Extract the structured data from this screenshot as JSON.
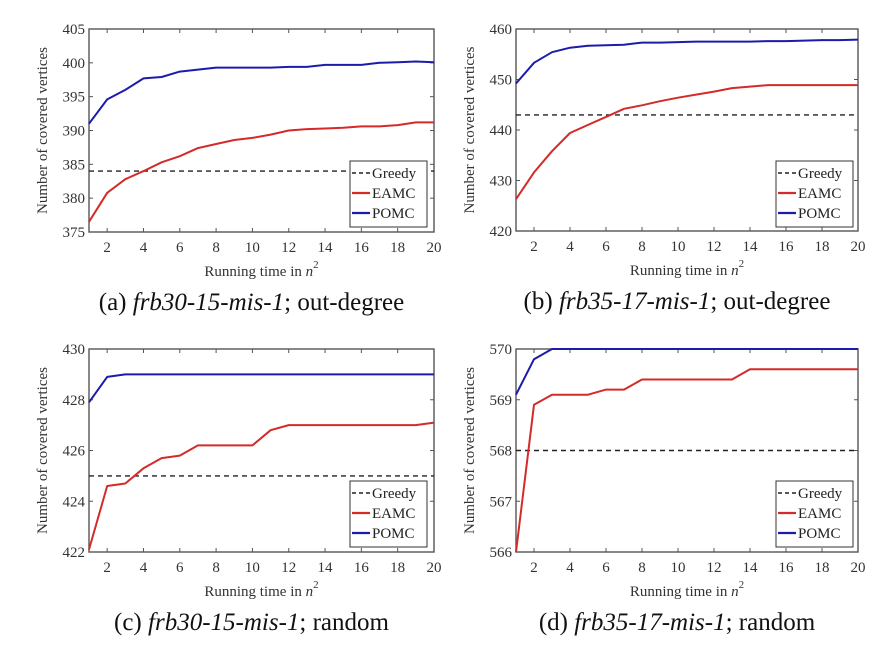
{
  "chart_data": [
    {
      "type": "line",
      "id": "a",
      "caption": {
        "prefix": "(a) ",
        "dataset": "frb30-15-mis-1",
        "suffix": "; out-degree"
      },
      "xlabel": "Running time in n^2",
      "xlabel_main": "Running time in ",
      "xlabel_var": "n",
      "xlabel_exp": "2",
      "ylabel": "Number of covered vertices",
      "xlim": [
        1,
        20
      ],
      "ylim": [
        375,
        405
      ],
      "xticks": [
        2,
        4,
        6,
        8,
        10,
        12,
        14,
        16,
        18,
        20
      ],
      "yticks": [
        375,
        380,
        385,
        390,
        395,
        400,
        405
      ],
      "legend_position": "bottom-right",
      "x": [
        1,
        2,
        3,
        4,
        5,
        6,
        7,
        8,
        9,
        10,
        11,
        12,
        13,
        14,
        15,
        16,
        17,
        18,
        19,
        20
      ],
      "series": [
        {
          "name": "Greedy",
          "style": "dashed",
          "color": "#222222",
          "values": [
            384,
            384,
            384,
            384,
            384,
            384,
            384,
            384,
            384,
            384,
            384,
            384,
            384,
            384,
            384,
            384,
            384,
            384,
            384,
            384
          ]
        },
        {
          "name": "EAMC",
          "style": "solid",
          "color": "#d42a2a",
          "values": [
            376.5,
            380.8,
            382.8,
            384.0,
            385.3,
            386.2,
            387.4,
            388.0,
            388.6,
            388.9,
            389.4,
            390.0,
            390.2,
            390.3,
            390.4,
            390.6,
            390.6,
            390.8,
            391.2,
            391.2
          ]
        },
        {
          "name": "POMC",
          "style": "solid",
          "color": "#1c1cab",
          "values": [
            391.0,
            394.6,
            396.0,
            397.7,
            397.9,
            398.7,
            399.0,
            399.3,
            399.3,
            399.3,
            399.3,
            399.4,
            399.4,
            399.7,
            399.7,
            399.7,
            400.0,
            400.1,
            400.2,
            400.1
          ]
        }
      ]
    },
    {
      "type": "line",
      "id": "b",
      "caption": {
        "prefix": "(b) ",
        "dataset": "frb35-17-mis-1",
        "suffix": "; out-degree"
      },
      "xlabel": "Running time in n^2",
      "xlabel_main": "Running time in ",
      "xlabel_var": "n",
      "xlabel_exp": "2",
      "ylabel": "Number of covered vertices",
      "xlim": [
        1,
        20
      ],
      "ylim": [
        420,
        460
      ],
      "xticks": [
        2,
        4,
        6,
        8,
        10,
        12,
        14,
        16,
        18,
        20
      ],
      "yticks": [
        420,
        430,
        440,
        450,
        460
      ],
      "legend_position": "bottom-right",
      "x": [
        1,
        2,
        3,
        4,
        5,
        6,
        7,
        8,
        9,
        10,
        11,
        12,
        13,
        14,
        15,
        16,
        17,
        18,
        19,
        20
      ],
      "series": [
        {
          "name": "Greedy",
          "style": "dashed",
          "color": "#222222",
          "values": [
            443,
            443,
            443,
            443,
            443,
            443,
            443,
            443,
            443,
            443,
            443,
            443,
            443,
            443,
            443,
            443,
            443,
            443,
            443,
            443
          ]
        },
        {
          "name": "EAMC",
          "style": "solid",
          "color": "#d42a2a",
          "values": [
            426.3,
            431.6,
            435.8,
            439.4,
            441.0,
            442.6,
            444.2,
            444.9,
            445.7,
            446.4,
            447.0,
            447.6,
            448.3,
            448.6,
            448.9,
            448.9,
            448.9,
            448.9,
            448.9,
            448.9
          ]
        },
        {
          "name": "POMC",
          "style": "solid",
          "color": "#1c1cab",
          "values": [
            449.2,
            453.3,
            455.4,
            456.3,
            456.7,
            456.8,
            456.9,
            457.3,
            457.3,
            457.4,
            457.5,
            457.5,
            457.5,
            457.5,
            457.6,
            457.6,
            457.7,
            457.8,
            457.8,
            457.9
          ]
        }
      ]
    },
    {
      "type": "line",
      "id": "c",
      "caption": {
        "prefix": "(c) ",
        "dataset": "frb30-15-mis-1",
        "suffix": "; random"
      },
      "xlabel": "Running time in n^2",
      "xlabel_main": "Running time in ",
      "xlabel_var": "n",
      "xlabel_exp": "2",
      "ylabel": "Number of covered vertices",
      "xlim": [
        1,
        20
      ],
      "ylim": [
        422,
        430
      ],
      "xticks": [
        2,
        4,
        6,
        8,
        10,
        12,
        14,
        16,
        18,
        20
      ],
      "yticks": [
        422,
        424,
        426,
        428,
        430
      ],
      "legend_position": "bottom-right",
      "x": [
        1,
        2,
        3,
        4,
        5,
        6,
        7,
        8,
        9,
        10,
        11,
        12,
        13,
        14,
        15,
        16,
        17,
        18,
        19,
        20
      ],
      "series": [
        {
          "name": "Greedy",
          "style": "dashed",
          "color": "#222222",
          "values": [
            425,
            425,
            425,
            425,
            425,
            425,
            425,
            425,
            425,
            425,
            425,
            425,
            425,
            425,
            425,
            425,
            425,
            425,
            425,
            425
          ]
        },
        {
          "name": "EAMC",
          "style": "solid",
          "color": "#d42a2a",
          "values": [
            422.1,
            424.6,
            424.7,
            425.3,
            425.7,
            425.8,
            426.2,
            426.2,
            426.2,
            426.2,
            426.8,
            427.0,
            427.0,
            427.0,
            427.0,
            427.0,
            427.0,
            427.0,
            427.0,
            427.1
          ]
        },
        {
          "name": "POMC",
          "style": "solid",
          "color": "#1c1cab",
          "values": [
            427.9,
            428.9,
            429.0,
            429.0,
            429.0,
            429.0,
            429.0,
            429.0,
            429.0,
            429.0,
            429.0,
            429.0,
            429.0,
            429.0,
            429.0,
            429.0,
            429.0,
            429.0,
            429.0,
            429.0
          ]
        }
      ]
    },
    {
      "type": "line",
      "id": "d",
      "caption": {
        "prefix": "(d) ",
        "dataset": "frb35-17-mis-1",
        "suffix": "; random"
      },
      "xlabel": "Running time in n^2",
      "xlabel_main": "Running time in ",
      "xlabel_var": "n",
      "xlabel_exp": "2",
      "ylabel": "Number of covered vertices",
      "xlim": [
        1,
        20
      ],
      "ylim": [
        566,
        570
      ],
      "xticks": [
        2,
        4,
        6,
        8,
        10,
        12,
        14,
        16,
        18,
        20
      ],
      "yticks": [
        566,
        567,
        568,
        569,
        570
      ],
      "legend_position": "bottom-right",
      "x": [
        1,
        2,
        3,
        4,
        5,
        6,
        7,
        8,
        9,
        10,
        11,
        12,
        13,
        14,
        15,
        16,
        17,
        18,
        19,
        20
      ],
      "series": [
        {
          "name": "Greedy",
          "style": "dashed",
          "color": "#222222",
          "values": [
            568,
            568,
            568,
            568,
            568,
            568,
            568,
            568,
            568,
            568,
            568,
            568,
            568,
            568,
            568,
            568,
            568,
            568,
            568,
            568
          ]
        },
        {
          "name": "EAMC",
          "style": "solid",
          "color": "#d42a2a",
          "values": [
            566.0,
            568.9,
            569.1,
            569.1,
            569.1,
            569.2,
            569.2,
            569.4,
            569.4,
            569.4,
            569.4,
            569.4,
            569.4,
            569.6,
            569.6,
            569.6,
            569.6,
            569.6,
            569.6,
            569.6
          ]
        },
        {
          "name": "POMC",
          "style": "solid",
          "color": "#1c1cab",
          "values": [
            569.1,
            569.8,
            570.0,
            570.0,
            570.0,
            570.0,
            570.0,
            570.0,
            570.0,
            570.0,
            570.0,
            570.0,
            570.0,
            570.0,
            570.0,
            570.0,
            570.0,
            570.0,
            570.0,
            570.0
          ]
        }
      ]
    }
  ]
}
